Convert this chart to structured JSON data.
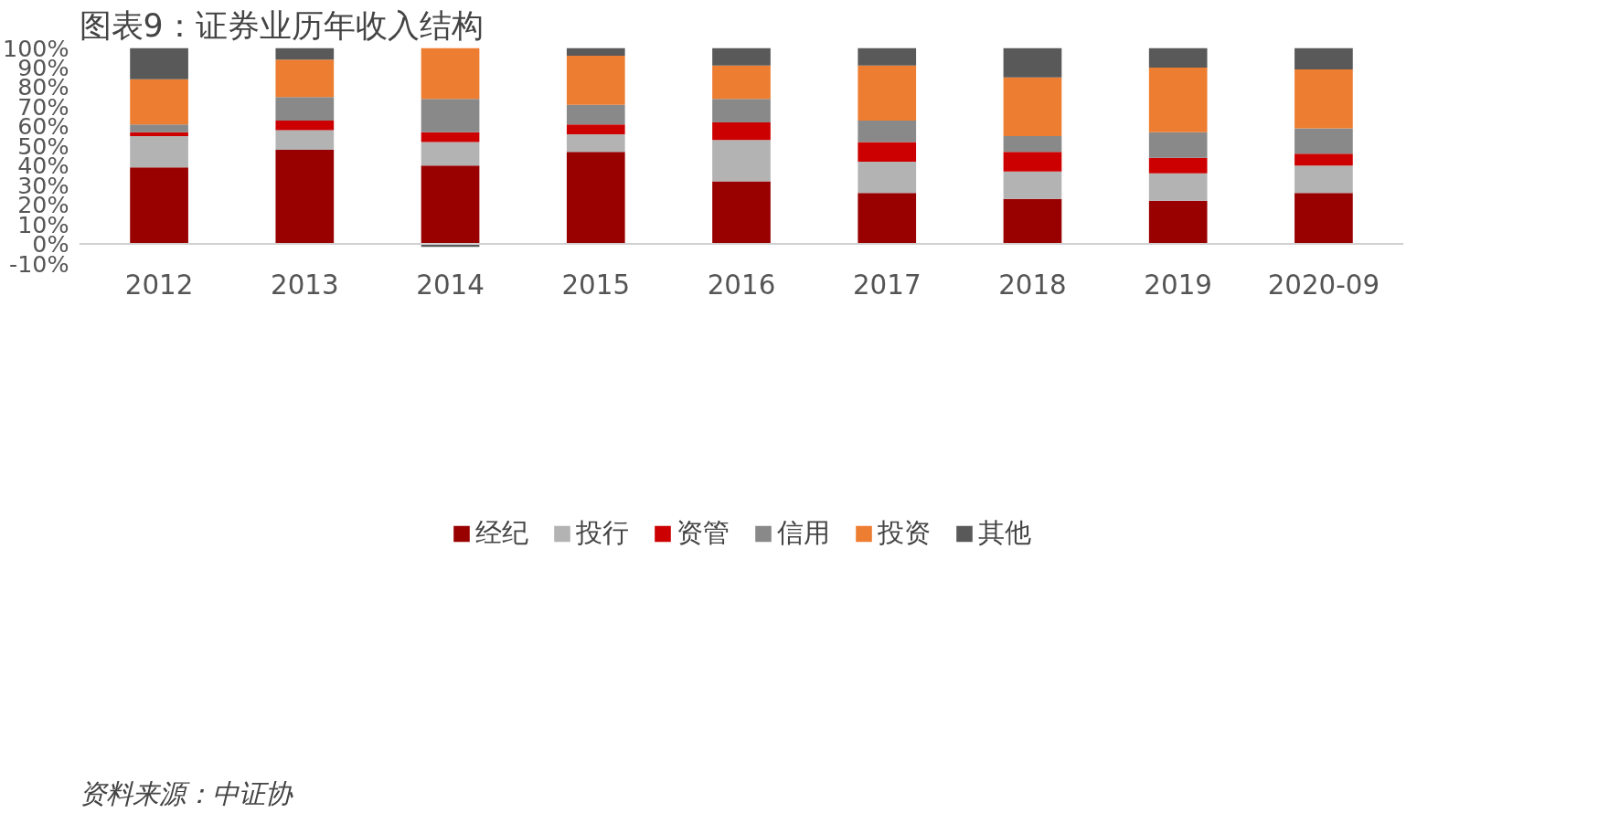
{
  "chart_data": {
    "type": "bar",
    "stacked": true,
    "title": "图表9：证券业历年收入结构",
    "categories": [
      "2012",
      "2013",
      "2014",
      "2015",
      "2016",
      "2017",
      "2018",
      "2019",
      "2020-09"
    ],
    "series": [
      {
        "name": "经纪",
        "color": "#990000",
        "values": [
          39,
          48,
          40,
          47,
          32,
          26,
          23,
          22,
          26
        ]
      },
      {
        "name": "投行",
        "color": "#b3b3b3",
        "values": [
          16,
          10,
          12,
          9,
          21,
          16,
          14,
          14,
          14
        ]
      },
      {
        "name": "资管",
        "color": "#cc0000",
        "values": [
          2,
          5,
          5,
          5,
          9,
          10,
          10,
          8,
          6
        ]
      },
      {
        "name": "信用",
        "color": "#898989",
        "values": [
          4,
          12,
          17,
          10,
          12,
          11,
          8,
          13,
          13
        ]
      },
      {
        "name": "投资",
        "color": "#ed7d31",
        "values": [
          23,
          19,
          26,
          25,
          17,
          28,
          30,
          33,
          30
        ]
      },
      {
        "name": "其他",
        "color": "#595959",
        "values": [
          16,
          6,
          -1.5,
          4,
          9,
          9,
          15,
          10,
          11
        ]
      }
    ],
    "ylim": [
      -10,
      100
    ],
    "yticks": [
      {
        "value": -10,
        "label": "-10%"
      },
      {
        "value": 0,
        "label": "0%"
      },
      {
        "value": 10,
        "label": "10%"
      },
      {
        "value": 20,
        "label": "20%"
      },
      {
        "value": 30,
        "label": "30%"
      },
      {
        "value": 40,
        "label": "40%"
      },
      {
        "value": 50,
        "label": "50%"
      },
      {
        "value": 60,
        "label": "60%"
      },
      {
        "value": 70,
        "label": "70%"
      },
      {
        "value": 80,
        "label": "80%"
      },
      {
        "value": 90,
        "label": "90%"
      },
      {
        "value": 100,
        "label": "100%"
      }
    ],
    "grid": false,
    "legend": "bottom",
    "annotations": [
      "资料来源：中证协"
    ]
  }
}
